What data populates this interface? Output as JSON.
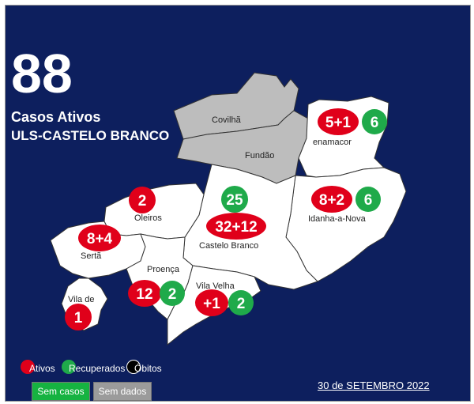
{
  "header": {
    "total": "88",
    "label": "Casos Ativos",
    "unit": "ULS-CASTELO BRANCO"
  },
  "municipalities": {
    "covilha": "Covilhã",
    "fundao": "Fundão",
    "penamacor": "enamacor",
    "idanha": "Idanha-a-Nova",
    "castelo_branco": "Castelo Branco",
    "oleiros": "Oleiros",
    "serta": "Sertã",
    "proenca": "Proença",
    "vila_velha": "Vila Velha",
    "vila_de_rei": "Vila de"
  },
  "counts": {
    "penamacor": {
      "ativos": "5+1",
      "recuperados": "6"
    },
    "idanha": {
      "ativos": "8+2",
      "recuperados": "6"
    },
    "castelo_branco": {
      "ativos": "32+12",
      "recuperados": "25"
    },
    "oleiros": {
      "ativos": "2"
    },
    "serta": {
      "ativos": "8+4"
    },
    "proenca": {
      "ativos": "12",
      "recuperados": "2"
    },
    "vila_velha": {
      "ativos": "+1",
      "recuperados": "2"
    },
    "vila_de_rei": {
      "ativos": "1"
    }
  },
  "legend": {
    "ativos": "Ativos",
    "recuperados": "Recuperados",
    "obitos": "Óbitos",
    "sem_casos": "Sem casos",
    "sem_dados": "Sem dados"
  },
  "footer": {
    "date": "30 de SETEMBRO 2022"
  },
  "colors": {
    "background": "#0d1f5e",
    "ativos": "#e0001a",
    "recuperados": "#1faa4a",
    "sem_dados": "#bdbdbd"
  }
}
